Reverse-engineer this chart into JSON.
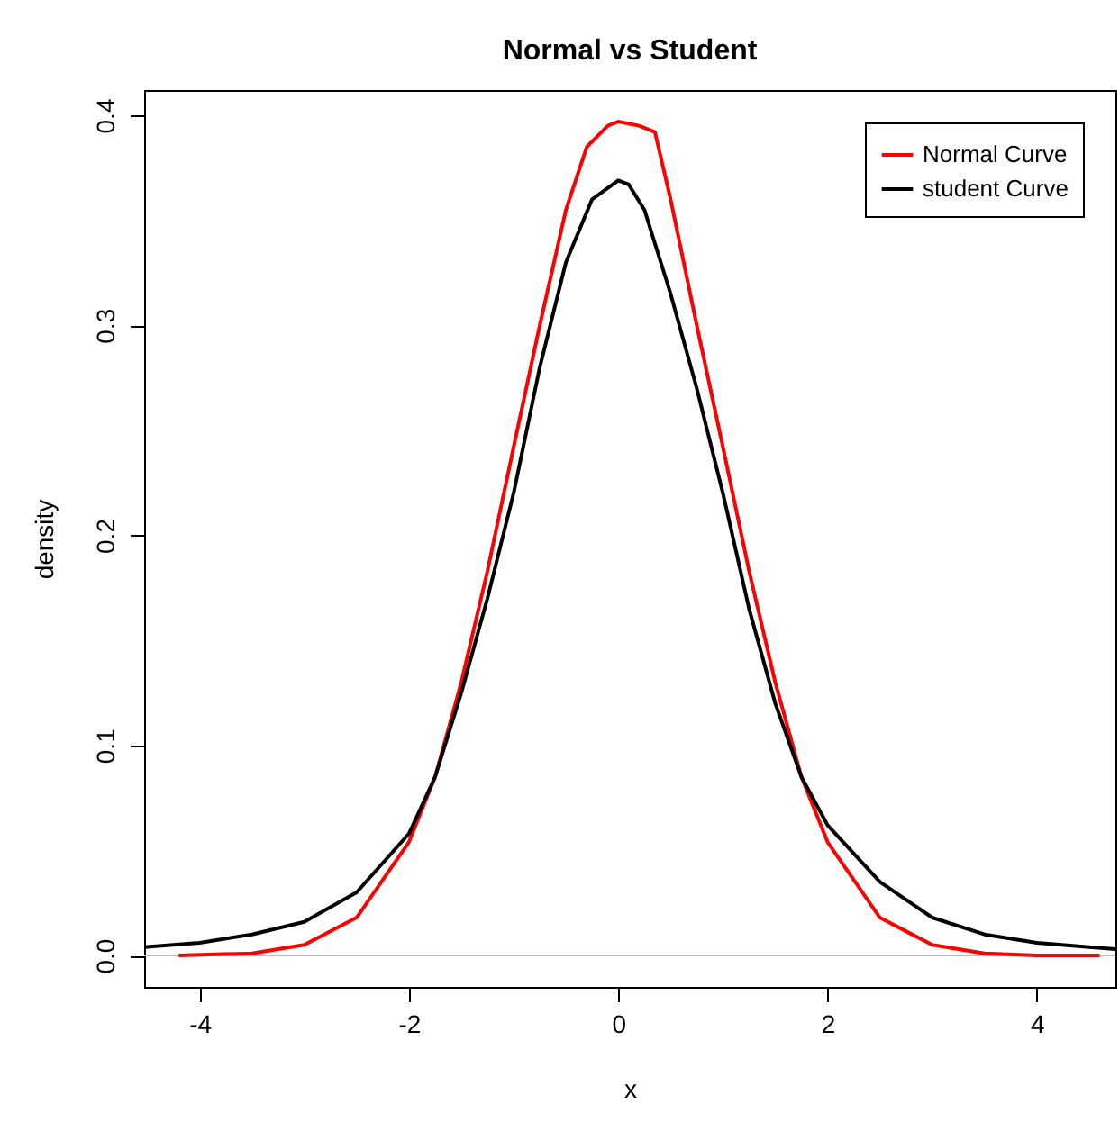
{
  "chart_data": {
    "type": "line",
    "title": "Normal vs Student",
    "xlabel": "x",
    "ylabel": "density",
    "xlim": [
      -4.53,
      4.75
    ],
    "ylim": [
      -0.015,
      0.412
    ],
    "xticks": [
      -4,
      -2,
      0,
      2,
      4
    ],
    "yticks": [
      {
        "value": 0,
        "label": "0.0"
      },
      0.1,
      0.2,
      0.3,
      0.4
    ],
    "grid": false,
    "legend": "top right",
    "marker": "none",
    "line_style": "solid",
    "ref_lines": [
      {
        "axis": "y",
        "value": 0,
        "color": "#bebebe"
      }
    ],
    "series": [
      {
        "name": "Normal Curve",
        "color": "#ff0000",
        "x": [
          -4.2,
          -3.5,
          -3,
          -2.5,
          -2,
          -1.75,
          -1.5,
          -1.25,
          -1,
          -0.75,
          -0.5,
          -0.3,
          -0.1,
          0,
          0.2,
          0.35,
          0.5,
          0.75,
          1,
          1.25,
          1.5,
          1.75,
          2,
          2.5,
          3,
          3.5,
          4,
          4.6
        ],
        "values": [
          0,
          0.001,
          0.005,
          0.018,
          0.054,
          0.085,
          0.13,
          0.183,
          0.242,
          0.3,
          0.355,
          0.385,
          0.395,
          0.397,
          0.395,
          0.392,
          0.36,
          0.3,
          0.242,
          0.183,
          0.13,
          0.085,
          0.054,
          0.018,
          0.005,
          0.001,
          0,
          0
        ]
      },
      {
        "name": "student Curve",
        "color": "#000000",
        "x": [
          -4.53,
          -4,
          -3.5,
          -3,
          -2.5,
          -2,
          -1.75,
          -1.5,
          -1.25,
          -1,
          -0.75,
          -0.5,
          -0.25,
          0,
          0.1,
          0.25,
          0.5,
          0.75,
          1,
          1.25,
          1.5,
          1.75,
          2,
          2.5,
          3,
          3.5,
          4,
          4.5,
          4.75
        ],
        "values": [
          0.004,
          0.006,
          0.01,
          0.016,
          0.03,
          0.058,
          0.085,
          0.125,
          0.17,
          0.22,
          0.28,
          0.33,
          0.36,
          0.369,
          0.367,
          0.355,
          0.315,
          0.27,
          0.22,
          0.165,
          0.12,
          0.085,
          0.062,
          0.035,
          0.018,
          0.01,
          0.006,
          0.004,
          0.003
        ]
      }
    ]
  }
}
